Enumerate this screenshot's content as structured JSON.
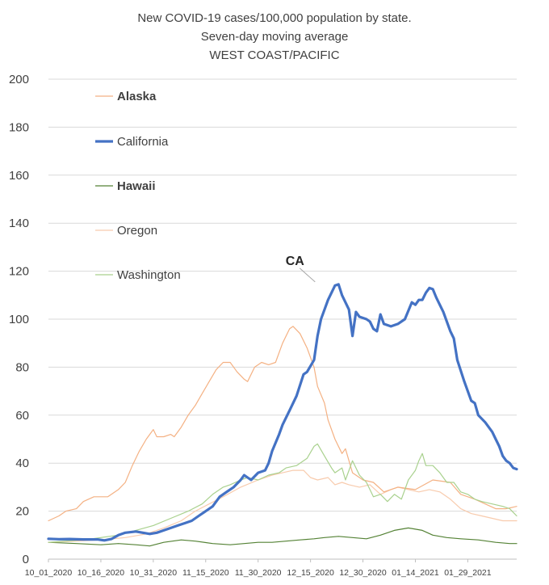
{
  "chart_data": {
    "type": "line",
    "title": [
      "New COVID-19 cases/100,000 population by state.",
      "Seven-day moving average",
      "WEST COAST/PACIFIC"
    ],
    "ylim": [
      0,
      200
    ],
    "yticks": [
      "0",
      "20",
      "40",
      "60",
      "80",
      "100",
      "120",
      "140",
      "160",
      "180",
      "200"
    ],
    "xticks": [
      "10_01_2020",
      "10_16_2020",
      "10_31_2020",
      "11_15_2020",
      "11_30_2020",
      "12_15_2020",
      "12_30_2020",
      "01_14_2021",
      "01_29_2021"
    ],
    "day_count": 135,
    "grid": true,
    "legend_position": "top-left",
    "annotation": {
      "text": "CA",
      "series": "California",
      "day": 77,
      "value": 114.5
    },
    "series": [
      {
        "name": "Alaska",
        "color": "#f4b183",
        "bold_label": true,
        "points": [
          [
            0,
            16
          ],
          [
            3,
            18
          ],
          [
            5,
            20
          ],
          [
            8,
            21
          ],
          [
            10,
            24
          ],
          [
            13,
            26
          ],
          [
            15,
            26
          ],
          [
            17,
            26
          ],
          [
            20,
            29
          ],
          [
            22,
            32
          ],
          [
            24,
            39
          ],
          [
            26,
            45
          ],
          [
            28,
            50
          ],
          [
            30,
            54
          ],
          [
            31,
            51
          ],
          [
            33,
            51
          ],
          [
            35,
            52
          ],
          [
            36,
            51
          ],
          [
            38,
            55
          ],
          [
            40,
            60
          ],
          [
            42,
            64
          ],
          [
            44,
            69
          ],
          [
            46,
            74
          ],
          [
            48,
            79
          ],
          [
            50,
            82
          ],
          [
            52,
            82
          ],
          [
            54,
            78
          ],
          [
            56,
            75
          ],
          [
            57,
            74
          ],
          [
            59,
            80
          ],
          [
            61,
            82
          ],
          [
            63,
            81
          ],
          [
            65,
            82
          ],
          [
            67,
            90
          ],
          [
            69,
            96
          ],
          [
            70,
            97
          ],
          [
            72,
            94
          ],
          [
            74,
            88
          ],
          [
            76,
            80
          ],
          [
            77,
            72
          ],
          [
            79,
            65
          ],
          [
            80,
            58
          ],
          [
            82,
            50
          ],
          [
            84,
            44
          ],
          [
            85,
            46
          ],
          [
            87,
            36
          ],
          [
            90,
            33
          ],
          [
            93,
            32
          ],
          [
            96,
            28
          ],
          [
            100,
            30
          ],
          [
            105,
            29
          ],
          [
            110,
            33
          ],
          [
            115,
            32
          ],
          [
            118,
            27
          ],
          [
            122,
            25
          ],
          [
            125,
            23
          ],
          [
            128,
            21
          ],
          [
            131,
            21
          ],
          [
            134,
            22
          ]
        ]
      },
      {
        "name": "California",
        "color": "#4472c4",
        "bold_label": false,
        "points": [
          [
            0,
            8.5
          ],
          [
            3,
            8.3
          ],
          [
            6,
            8.4
          ],
          [
            10,
            8.2
          ],
          [
            14,
            8.2
          ],
          [
            16,
            7.8
          ],
          [
            18,
            8.4
          ],
          [
            20,
            10
          ],
          [
            22,
            11
          ],
          [
            25,
            11.5
          ],
          [
            27,
            11
          ],
          [
            29,
            10.5
          ],
          [
            31,
            11
          ],
          [
            33,
            12
          ],
          [
            35,
            13
          ],
          [
            37,
            14
          ],
          [
            39,
            15
          ],
          [
            41,
            16
          ],
          [
            43,
            18
          ],
          [
            45,
            20
          ],
          [
            47,
            22
          ],
          [
            49,
            26
          ],
          [
            51,
            28
          ],
          [
            53,
            30
          ],
          [
            55,
            33
          ],
          [
            56,
            35
          ],
          [
            58,
            33
          ],
          [
            60,
            36
          ],
          [
            62,
            37
          ],
          [
            63,
            40
          ],
          [
            64,
            45
          ],
          [
            66,
            52
          ],
          [
            67,
            56
          ],
          [
            69,
            62
          ],
          [
            71,
            68
          ],
          [
            73,
            77
          ],
          [
            74,
            78
          ],
          [
            76,
            83
          ],
          [
            77,
            93
          ],
          [
            78,
            100
          ],
          [
            80,
            108
          ],
          [
            82,
            114
          ],
          [
            83,
            114.5
          ],
          [
            84,
            110
          ],
          [
            86,
            104
          ],
          [
            87,
            93
          ],
          [
            88,
            103
          ],
          [
            89,
            101
          ],
          [
            91,
            100
          ],
          [
            92,
            99
          ],
          [
            93,
            96
          ],
          [
            94,
            95
          ],
          [
            95,
            102
          ],
          [
            96,
            98
          ],
          [
            98,
            97
          ],
          [
            100,
            98
          ],
          [
            102,
            100
          ],
          [
            104,
            107
          ],
          [
            105,
            106
          ],
          [
            106,
            108
          ],
          [
            107,
            108
          ],
          [
            108,
            111
          ],
          [
            109,
            113
          ],
          [
            110,
            112.5
          ],
          [
            111,
            109
          ],
          [
            113,
            103
          ],
          [
            115,
            95
          ],
          [
            116,
            92
          ],
          [
            117,
            83
          ],
          [
            119,
            74
          ],
          [
            121,
            66
          ],
          [
            122,
            65
          ],
          [
            123,
            60
          ],
          [
            125,
            57
          ],
          [
            127,
            53
          ],
          [
            128,
            50
          ],
          [
            129,
            47
          ],
          [
            130,
            43
          ],
          [
            131,
            41
          ],
          [
            132,
            40
          ],
          [
            133,
            38
          ],
          [
            134,
            37.5
          ]
        ]
      },
      {
        "name": "Hawaii",
        "color": "#548235",
        "bold_label": true,
        "points": [
          [
            0,
            7
          ],
          [
            8,
            6.5
          ],
          [
            15,
            6
          ],
          [
            20,
            6.5
          ],
          [
            25,
            6
          ],
          [
            29,
            5.5
          ],
          [
            33,
            7
          ],
          [
            38,
            8
          ],
          [
            42,
            7.5
          ],
          [
            47,
            6.5
          ],
          [
            52,
            6
          ],
          [
            56,
            6.5
          ],
          [
            60,
            7
          ],
          [
            64,
            7
          ],
          [
            68,
            7.5
          ],
          [
            72,
            8
          ],
          [
            76,
            8.5
          ],
          [
            79,
            9
          ],
          [
            83,
            9.5
          ],
          [
            87,
            9
          ],
          [
            91,
            8.5
          ],
          [
            95,
            10
          ],
          [
            99,
            12
          ],
          [
            103,
            13
          ],
          [
            107,
            12
          ],
          [
            110,
            10
          ],
          [
            114,
            9
          ],
          [
            118,
            8.5
          ],
          [
            123,
            8
          ],
          [
            128,
            7
          ],
          [
            132,
            6.5
          ],
          [
            134,
            6.5
          ]
        ]
      },
      {
        "name": "Oregon",
        "color": "#f8cbad",
        "bold_label": false,
        "points": [
          [
            0,
            7
          ],
          [
            8,
            7.5
          ],
          [
            15,
            8
          ],
          [
            22,
            9
          ],
          [
            28,
            10.5
          ],
          [
            33,
            13
          ],
          [
            38,
            16
          ],
          [
            42,
            20
          ],
          [
            46,
            23
          ],
          [
            50,
            26
          ],
          [
            55,
            30
          ],
          [
            60,
            33
          ],
          [
            64,
            35
          ],
          [
            67,
            36
          ],
          [
            70,
            37
          ],
          [
            73,
            37
          ],
          [
            75,
            34
          ],
          [
            77,
            33
          ],
          [
            80,
            34
          ],
          [
            82,
            31
          ],
          [
            84,
            32
          ],
          [
            86,
            31
          ],
          [
            89,
            30
          ],
          [
            92,
            31
          ],
          [
            95,
            27
          ],
          [
            98,
            29
          ],
          [
            100,
            30
          ],
          [
            103,
            29
          ],
          [
            106,
            28
          ],
          [
            109,
            29
          ],
          [
            112,
            28
          ],
          [
            115,
            25
          ],
          [
            118,
            21
          ],
          [
            121,
            19
          ],
          [
            124,
            18
          ],
          [
            127,
            17
          ],
          [
            130,
            16
          ],
          [
            133,
            16
          ],
          [
            134,
            16
          ]
        ]
      },
      {
        "name": "Washington",
        "color": "#a9d18e",
        "bold_label": false,
        "points": [
          [
            0,
            7
          ],
          [
            5,
            7.5
          ],
          [
            10,
            8
          ],
          [
            15,
            9
          ],
          [
            20,
            10
          ],
          [
            25,
            12
          ],
          [
            30,
            14
          ],
          [
            35,
            17
          ],
          [
            40,
            20
          ],
          [
            44,
            23
          ],
          [
            47,
            27
          ],
          [
            50,
            30
          ],
          [
            52,
            31
          ],
          [
            55,
            33
          ],
          [
            57,
            34
          ],
          [
            60,
            33
          ],
          [
            63,
            35
          ],
          [
            66,
            36
          ],
          [
            68,
            38
          ],
          [
            71,
            39
          ],
          [
            72,
            40
          ],
          [
            74,
            42
          ],
          [
            76,
            47
          ],
          [
            77,
            48
          ],
          [
            79,
            43
          ],
          [
            81,
            38
          ],
          [
            82,
            36
          ],
          [
            84,
            38
          ],
          [
            85,
            33
          ],
          [
            87,
            41
          ],
          [
            89,
            35
          ],
          [
            91,
            32
          ],
          [
            93,
            26
          ],
          [
            95,
            27
          ],
          [
            97,
            24
          ],
          [
            99,
            27
          ],
          [
            101,
            25
          ],
          [
            103,
            33
          ],
          [
            105,
            37
          ],
          [
            106,
            41
          ],
          [
            107,
            44
          ],
          [
            108,
            39
          ],
          [
            110,
            39
          ],
          [
            112,
            36
          ],
          [
            114,
            32
          ],
          [
            116,
            32
          ],
          [
            118,
            28
          ],
          [
            120,
            27
          ],
          [
            122,
            25
          ],
          [
            124,
            24
          ],
          [
            127,
            23
          ],
          [
            130,
            22
          ],
          [
            132,
            21
          ],
          [
            134,
            18
          ]
        ]
      }
    ]
  }
}
